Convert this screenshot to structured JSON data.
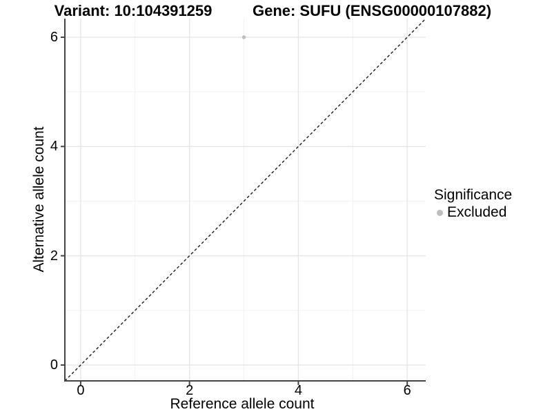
{
  "chart_data": {
    "type": "scatter",
    "titles": {
      "left": "Variant: 10:104391259",
      "right": "Gene: SUFU (ENSG00000107882)"
    },
    "xlabel": "Reference allele count",
    "ylabel": "Alternative allele count",
    "xlim": [
      -0.29,
      6.34
    ],
    "ylim": [
      -0.29,
      6.34
    ],
    "xticks": [
      0,
      2,
      4,
      6
    ],
    "yticks": [
      0,
      2,
      4,
      6
    ],
    "grid_major": [
      0,
      2,
      4,
      6
    ],
    "grid_minor": [
      1,
      3,
      5
    ],
    "grid": true,
    "series": [
      {
        "name": "Excluded",
        "color": "#bdbdbd",
        "points": [
          {
            "x": 3,
            "y": 6
          }
        ]
      }
    ],
    "identity_line": {
      "equation": "y = x",
      "style": "dashed",
      "color": "#1a1a1a"
    },
    "legend": {
      "title": "Significance",
      "position": "right"
    },
    "colors": {
      "background": "#ffffff",
      "grid_major": "#e6e6e6",
      "grid_minor": "#f1f1f1",
      "axis": "#444444",
      "text": "#000000"
    }
  }
}
